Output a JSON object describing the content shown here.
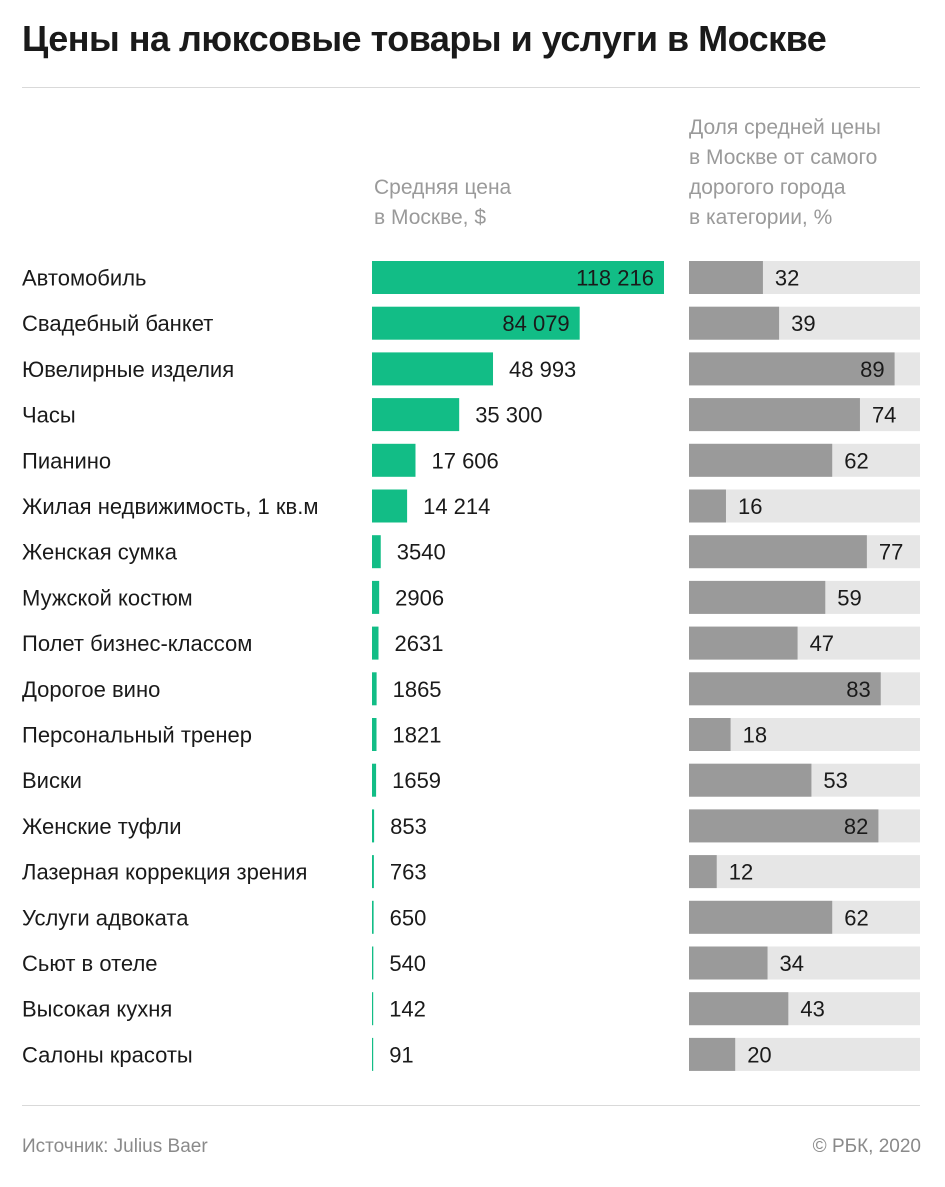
{
  "title": "Цены на люксовые товары и услуги в Москве",
  "col1_header": [
    "Средняя цена",
    "в Москве, $"
  ],
  "col2_header": [
    "Доля средней цены",
    "в Москве от самого",
    "дорогого города",
    "в категории, %"
  ],
  "footer": {
    "source": "Источник: Julius Baer",
    "copyright": "© РБК, 2020"
  },
  "colors": {
    "price_bar": "#12bd86",
    "share_bar": "#9a9a9a",
    "share_track": "#e6e6e6"
  },
  "chart_data": {
    "type": "bar",
    "title": "Цены на люксовые товары и услуги в Москве",
    "categories": [
      "Автомобиль",
      "Свадебный банкет",
      "Ювелирные изделия",
      "Часы",
      "Пианино",
      "Жилая недвижимость, 1 кв.м",
      "Женская сумка",
      "Мужской костюм",
      "Полет бизнес-классом",
      "Дорогое вино",
      "Персональный тренер",
      "Виски",
      "Женские туфли",
      "Лазерная коррекция зрения",
      "Услуги адвоката",
      "Сьют в отеле",
      "Высокая кухня",
      "Салоны красоты"
    ],
    "series": [
      {
        "name": "Средняя цена в Москве, $",
        "values": [
          118216,
          84079,
          48993,
          35300,
          17606,
          14214,
          3540,
          2906,
          2631,
          1865,
          1821,
          1659,
          853,
          763,
          650,
          540,
          142,
          91
        ],
        "labels": [
          "118 216",
          "84 079",
          "48 993",
          "35 300",
          "17 606",
          "14 214",
          "3540",
          "2906",
          "2631",
          "1865",
          "1821",
          "1659",
          "853",
          "763",
          "650",
          "540",
          "142",
          "91"
        ]
      },
      {
        "name": "Доля средней цены в Москве от самого дорогого города в категории, %",
        "values": [
          32,
          39,
          89,
          74,
          62,
          16,
          77,
          59,
          47,
          83,
          18,
          53,
          82,
          12,
          62,
          34,
          43,
          20
        ],
        "labels": [
          "32",
          "39",
          "89",
          "74",
          "62",
          "16",
          "77",
          "59",
          "47",
          "83",
          "18",
          "53",
          "82",
          "12",
          "62",
          "34",
          "43",
          "20"
        ]
      }
    ],
    "xlim_price": [
      0,
      118216
    ],
    "xlim_share": [
      0,
      100
    ]
  }
}
